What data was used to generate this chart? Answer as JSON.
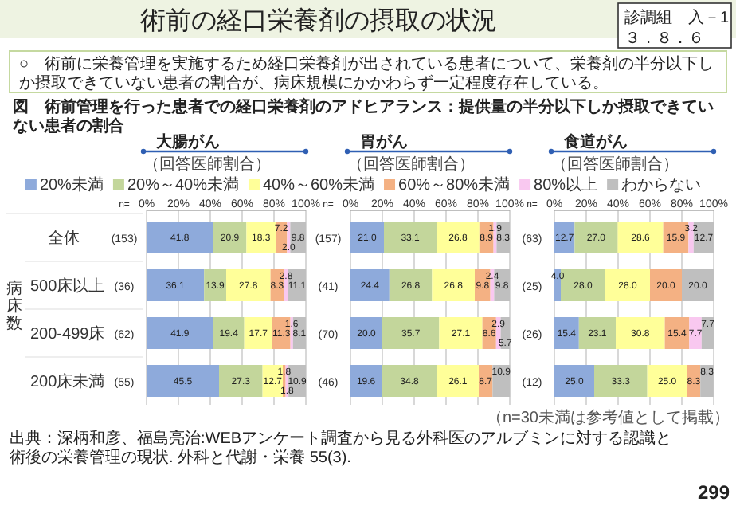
{
  "chart_data": [
    {
      "type": "bar",
      "orientation": "horizontal",
      "stacked": true,
      "title": "大腸がん",
      "subtitle": "（回答医師割合）",
      "ylabel": "n=",
      "categories": [
        "(153)",
        "(36)",
        "(62)",
        "(55)"
      ],
      "xlim": [
        0,
        100
      ],
      "xticks": [
        {
          "value": 0,
          "label": "0%"
        },
        {
          "value": 20,
          "label": "20%"
        },
        {
          "value": 40,
          "label": "40%"
        },
        {
          "value": 60,
          "label": "60%"
        },
        {
          "value": 80,
          "label": "80%"
        },
        {
          "value": 100,
          "label": "100%"
        }
      ],
      "grid": "x",
      "legend": "top",
      "series": [
        {
          "name": "20%未満",
          "color": "#8eaadb",
          "values": [
            41.8,
            36.1,
            41.9,
            45.5
          ],
          "value_labels": [
            "41.8",
            "36.1",
            "41.9",
            "45.5"
          ]
        },
        {
          "name": "20%～40%未満",
          "color": "#c3d69b",
          "values": [
            20.9,
            13.9,
            19.4,
            27.3
          ],
          "value_labels": [
            "20.9",
            "13.9",
            "19.4",
            "27.3"
          ]
        },
        {
          "name": "40%～60%未満",
          "color": "#ffff99",
          "values": [
            18.3,
            27.8,
            17.7,
            12.7
          ],
          "value_labels": [
            "18.3",
            "27.8",
            "17.7",
            "12.7"
          ]
        },
        {
          "name": "60%～80%未満",
          "color": "#f4b183",
          "values": [
            7.2,
            8.3,
            11.3,
            1.8
          ],
          "value_labels": [
            "7.2",
            "8.3",
            "11.3",
            "1.8"
          ]
        },
        {
          "name": "80%以上",
          "color": "#f9c8f0",
          "values": [
            2.0,
            2.8,
            1.6,
            1.8
          ],
          "value_labels": [
            "2.0",
            "2.8",
            "1.6",
            "1.8"
          ]
        },
        {
          "name": "わからない",
          "color": "#bfbfbf",
          "values": [
            9.8,
            11.1,
            8.1,
            10.9
          ],
          "value_labels": [
            "9.8",
            "11.1",
            "8.1",
            "10.9"
          ]
        }
      ],
      "annotations": [
        "術前の経口栄養剤の摂取の状況",
        "診調組　入－1",
        "３．８．６",
        "○　術前に栄養管理を実施するため経口栄養剤が出されている患者について、栄養剤の半分以下しか摂取できていない患者の割合が、病床規模にかかわらず一定程度存在している。",
        "図　術前管理を行った患者での経口栄養剤のアドヒアランス：提供量の半分以下しか摂取できていない患者の割合",
        "病床数",
        "全体",
        "500床以上",
        "200-499床",
        "200床未満"
      ]
    },
    {
      "type": "bar",
      "orientation": "horizontal",
      "stacked": true,
      "title": "胃がん",
      "subtitle": "（回答医師割合）",
      "ylabel": "n=",
      "categories": [
        "(157)",
        "(41)",
        "(70)",
        "(46)"
      ],
      "xlim": [
        0,
        100
      ],
      "xticks": [
        {
          "value": 0,
          "label": "0%"
        },
        {
          "value": 20,
          "label": "20%"
        },
        {
          "value": 40,
          "label": "40%"
        },
        {
          "value": 60,
          "label": "60%"
        },
        {
          "value": 80,
          "label": "80%"
        },
        {
          "value": 100,
          "label": "100%"
        }
      ],
      "grid": "x",
      "series": [
        {
          "color": "#8eaadb",
          "values": [
            21.0,
            24.4,
            20.0,
            19.6
          ],
          "value_labels": [
            "21.0",
            "24.4",
            "20.0",
            "19.6"
          ]
        },
        {
          "color": "#c3d69b",
          "values": [
            33.1,
            26.8,
            35.7,
            34.8
          ],
          "value_labels": [
            "33.1",
            "26.8",
            "35.7",
            "34.8"
          ]
        },
        {
          "color": "#ffff99",
          "values": [
            26.8,
            26.8,
            27.1,
            26.1
          ],
          "value_labels": [
            "26.8",
            "26.8",
            "27.1",
            "26.1"
          ]
        },
        {
          "color": "#f4b183",
          "values": [
            8.9,
            9.8,
            8.6,
            8.7
          ],
          "value_labels": [
            "8.9",
            "9.8",
            "8.6",
            "8.7"
          ]
        },
        {
          "color": "#f9c8f0",
          "values": [
            1.9,
            2.4,
            2.9,
            null
          ],
          "value_labels": [
            "1.9",
            "2.4",
            "2.9",
            null
          ]
        },
        {
          "color": "#bfbfbf",
          "values": [
            8.3,
            9.8,
            5.7,
            10.9
          ],
          "value_labels": [
            "8.3",
            "9.8",
            "5.7",
            "10.9"
          ]
        }
      ]
    },
    {
      "type": "bar",
      "orientation": "horizontal",
      "stacked": true,
      "title": "食道がん",
      "subtitle": "（回答医師割合）",
      "ylabel": "n=",
      "categories": [
        "(63)",
        "(25)",
        "(26)",
        "(12)"
      ],
      "xlim": [
        0,
        100
      ],
      "xticks": [
        {
          "value": 0,
          "label": "0%"
        },
        {
          "value": 20,
          "label": "20%"
        },
        {
          "value": 40,
          "label": "40%"
        },
        {
          "value": 60,
          "label": "60%"
        },
        {
          "value": 80,
          "label": "80%"
        },
        {
          "value": 100,
          "label": "100%"
        }
      ],
      "grid": "x",
      "series": [
        {
          "color": "#8eaadb",
          "values": [
            12.7,
            4.0,
            15.4,
            25.0
          ],
          "value_labels": [
            "12.7",
            "4.0",
            "15.4",
            "25.0"
          ]
        },
        {
          "color": "#c3d69b",
          "values": [
            27.0,
            28.0,
            23.1,
            33.3
          ],
          "value_labels": [
            "27.0",
            "28.0",
            "23.1",
            "33.3"
          ]
        },
        {
          "color": "#ffff99",
          "values": [
            28.6,
            28.0,
            30.8,
            25.0
          ],
          "value_labels": [
            "28.6",
            "28.0",
            "30.8",
            "25.0"
          ]
        },
        {
          "color": "#f4b183",
          "values": [
            15.9,
            20.0,
            15.4,
            8.3
          ],
          "value_labels": [
            "15.9",
            "20.0",
            "15.4",
            "8.3"
          ]
        },
        {
          "color": "#f9c8f0",
          "values": [
            3.2,
            null,
            7.7,
            null
          ],
          "value_labels": [
            "3.2",
            null,
            "7.7",
            null
          ]
        },
        {
          "color": "#bfbfbf",
          "values": [
            12.7,
            20.0,
            7.7,
            8.3
          ],
          "value_labels": [
            "12.7",
            "20.0",
            "7.7",
            "8.3"
          ]
        }
      ],
      "annotations": [
        "（n=30未満は参考値として掲載）",
        "出典：深柄和彦、福島亮治:WEBアンケート調査から見る外科医のアルブミンに対する認識と術後の栄養管理の現状. 外科と代謝・栄養 55(3).",
        "299"
      ]
    }
  ]
}
